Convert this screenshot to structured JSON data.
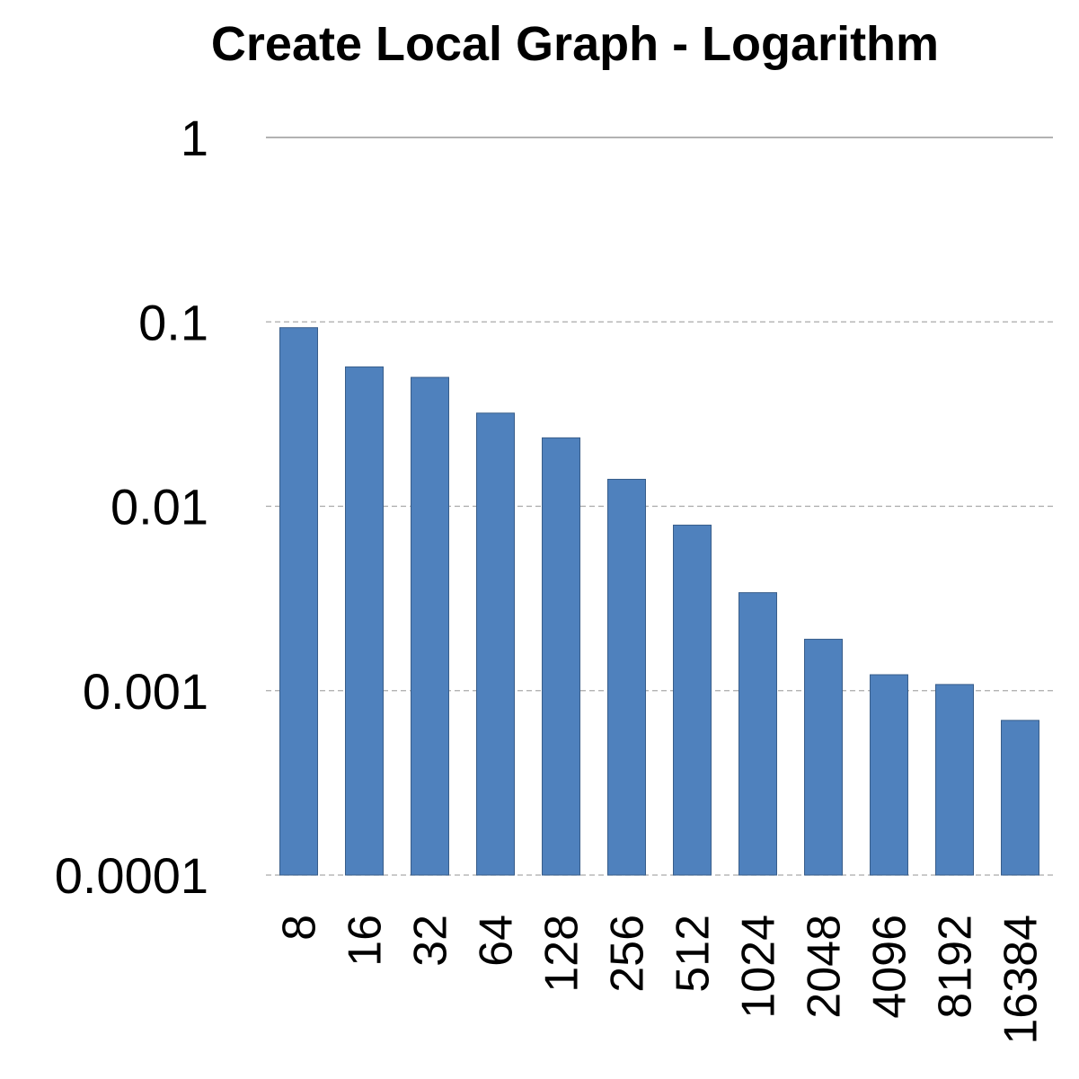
{
  "chart_data": {
    "type": "bar",
    "title": "Create Local Graph - Logarithm",
    "xlabel": "",
    "ylabel": "",
    "y_scale": "log",
    "ylim": [
      0.0001,
      1
    ],
    "y_ticks": [
      "1",
      "0.1",
      "0.01",
      "0.001",
      "0.0001"
    ],
    "grid": true,
    "legend": "none",
    "categories": [
      "8",
      "16",
      "32",
      "64",
      "128",
      "256",
      "512",
      "1024",
      "2048",
      "4096",
      "8192",
      "16384"
    ],
    "values": [
      0.093,
      0.057,
      0.05,
      0.032,
      0.0235,
      0.014,
      0.0079,
      0.0034,
      0.0019,
      0.00122,
      0.00108,
      0.00069
    ],
    "bar_color": "#4F81BD",
    "bar_edge_color": "#385D8A"
  }
}
